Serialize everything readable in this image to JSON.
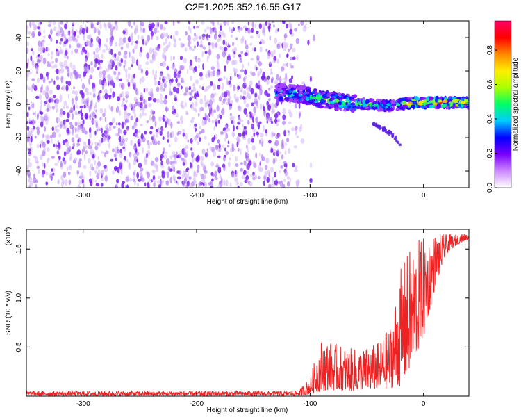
{
  "title": "C2E1.2025.352.16.55.G17",
  "chart_data": [
    {
      "type": "heatmap",
      "name": "spectrogram",
      "xlabel": "Height of straight line (km)",
      "ylabel": "Frequency (Hz)",
      "xlim": [
        -350,
        40
      ],
      "ylim": [
        -50,
        50
      ],
      "xticks": [
        -300,
        -200,
        -100,
        0
      ],
      "xtick_labels": [
        "-300",
        "-200",
        "-100",
        "0"
      ],
      "yticks": [
        -40,
        -20,
        0,
        20,
        40
      ],
      "ytick_labels": [
        "-40",
        "-20",
        "0",
        "20",
        "40"
      ],
      "noise_region_x": [
        -350,
        -105
      ],
      "signal_track": {
        "x": [
          -130,
          -110,
          -90,
          -70,
          -50,
          -30,
          -10,
          10,
          30,
          40
        ],
        "freq": [
          7,
          6,
          3,
          1,
          0,
          -1,
          1,
          1,
          1,
          1
        ],
        "amplitude": [
          0.45,
          0.5,
          0.55,
          0.6,
          0.55,
          0.6,
          0.8,
          0.85,
          0.8,
          0.7
        ]
      },
      "branch_track": {
        "x": [
          -45,
          -40,
          -35,
          -30,
          -25,
          -20
        ],
        "freq": [
          -11,
          -13,
          -15,
          -17,
          -20,
          -24
        ]
      },
      "colorbar": {
        "label": "Normalized spectral amplitude",
        "ticks": [
          0.0,
          0.2,
          0.4,
          0.6,
          0.8
        ],
        "tick_labels": [
          "0.0",
          "0.2",
          "0.4",
          "0.6",
          "0.8"
        ],
        "range": [
          0,
          0.97
        ],
        "colors": [
          "#ffffff",
          "#cc88ff",
          "#7a00ff",
          "#0000ff",
          "#00ccff",
          "#00ff66",
          "#aaff00",
          "#ffee00",
          "#ff8800",
          "#ff0000",
          "#ff0066"
        ]
      }
    },
    {
      "type": "line",
      "name": "snr",
      "xlabel": "Height of straight line (km)",
      "ylabel": "SNR (10 * v/v)",
      "exponent_label": "(x10",
      "exponent_sup": "4",
      "exponent_close": ")",
      "xlim": [
        -350,
        40
      ],
      "ylim": [
        0,
        1.7
      ],
      "xticks": [
        -300,
        -200,
        -100,
        0
      ],
      "xtick_labels": [
        "-300",
        "-200",
        "-100",
        "0"
      ],
      "yticks": [
        0.5,
        1.0,
        1.5
      ],
      "ytick_labels": [
        "0.5",
        "1.0",
        "1.5"
      ],
      "line_color": "#ee2222",
      "envelope": {
        "x": [
          -350,
          -120,
          -110,
          -100,
          -90,
          -80,
          -70,
          -60,
          -50,
          -40,
          -30,
          -20,
          -15,
          -10,
          -5,
          0,
          10,
          20,
          30,
          40
        ],
        "low": [
          0.0,
          0.0,
          0.0,
          0.02,
          0.05,
          0.06,
          0.05,
          0.05,
          0.06,
          0.07,
          0.08,
          0.1,
          0.2,
          0.3,
          0.45,
          0.6,
          1.1,
          1.45,
          1.55,
          1.6
        ],
        "high": [
          0.05,
          0.05,
          0.06,
          0.2,
          0.6,
          0.55,
          0.5,
          0.48,
          0.5,
          0.55,
          0.7,
          1.3,
          1.45,
          1.55,
          1.6,
          1.62,
          1.66,
          1.65,
          1.65,
          1.66
        ]
      }
    }
  ]
}
